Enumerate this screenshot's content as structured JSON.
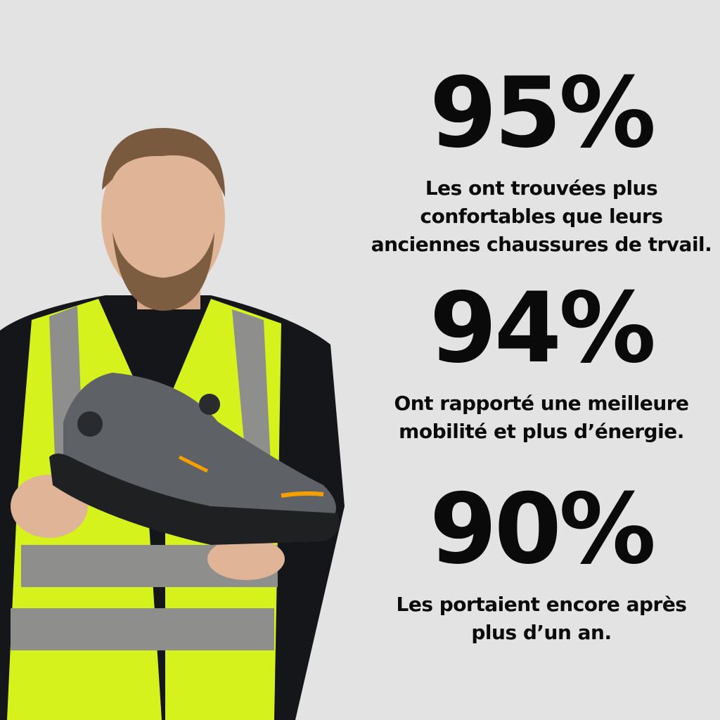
{
  "stats": [
    {
      "value": "95%",
      "caption": [
        "Les ont trouvées plus",
        "confortables que leurs",
        "anciennes chaussures de trvail."
      ]
    },
    {
      "value": "94%",
      "caption": [
        "Ont rapporté une meilleure",
        "mobilité et plus d’énergie."
      ]
    },
    {
      "value": "90%",
      "caption": [
        "Les portaient encore après",
        "plus d’un an."
      ]
    }
  ],
  "colors": {
    "background": "#e3e3e3",
    "vest": "#d6f21c",
    "reflective": "#8e8f8c",
    "shoe": "#5e6165",
    "sole": "#1f2022",
    "accent": "#f5a000",
    "text": "#0a0a0a"
  }
}
